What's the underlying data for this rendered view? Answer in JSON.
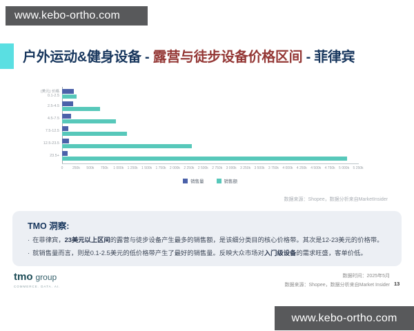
{
  "header": {
    "site_url_top": "www.kebo-ortho.com",
    "site_url_bottom": "www.kebo-ortho.com",
    "title_part1": "户外运动&健身设备 - ",
    "title_part2": "露营与徒步设备价格区间",
    "title_part3": " - 菲律宾"
  },
  "chart_data": {
    "type": "bar",
    "orientation": "horizontal",
    "axis_title": "(美元) 价格",
    "categories": [
      "0.1-2.5",
      "2.5-4.5",
      "4.5-7.5",
      "7.5-12.5",
      "12.5-23.5",
      "23.5+"
    ],
    "series": [
      {
        "name": "销售量",
        "color": "#4B61A9",
        "values_k": [
          210,
          190,
          160,
          115,
          125,
          100
        ]
      },
      {
        "name": "销售额",
        "color": "#57C8BA",
        "values_k": [
          260,
          675,
          950,
          1150,
          2300,
          5050
        ]
      }
    ],
    "x_ticks": [
      "0",
      "250k",
      "500k",
      "750k",
      "1 000k",
      "1 250k",
      "1 500k",
      "1 750k",
      "2 000k",
      "2 250k",
      "2 500k",
      "2 750k",
      "3 000k",
      "3 250k",
      "3 500k",
      "3 750k",
      "4 000k",
      "4 250k",
      "4 500k",
      "4 750k",
      "5 000k",
      "5 250k"
    ],
    "xlim_k": [
      0,
      5250
    ],
    "legend_position": "bottom-center",
    "grid": false,
    "source_note": "数据来源：Shopee，数据分析来自MarketInsider"
  },
  "insight": {
    "title": "TMO 洞察:",
    "bullet_char": "·",
    "bullets": [
      {
        "pre": "在菲律宾，",
        "bold": "23美元以上区间",
        "post": "的露营与徒步设备产生最多的销售额，是该细分类目的核心价格带。其次是12-23美元的价格带。"
      },
      {
        "pre": "就销售量而言，则是0.1-2.5美元的低价格带产生了最好的销售量。反映大众市场对",
        "bold": "入门级设备",
        "post": "的需求旺盛，客单价低。"
      }
    ]
  },
  "footer": {
    "logo_name": "tmo",
    "logo_suffix": "group",
    "logo_tagline": "COMMERCE. DATA. AI.",
    "data_time": "数据时间：2025年5月",
    "data_source": "数据来源：Shopee，数据分析来自Market Insider",
    "page_number": "13"
  },
  "colors": {
    "badge_bg": "#58595B",
    "title_navy": "#17365D",
    "title_red": "#943735",
    "accent_cyan": "#5ADFE2",
    "bar_volume": "#4B61A9",
    "bar_amount": "#57C8BA",
    "insight_bg": "#ECEFF4"
  }
}
